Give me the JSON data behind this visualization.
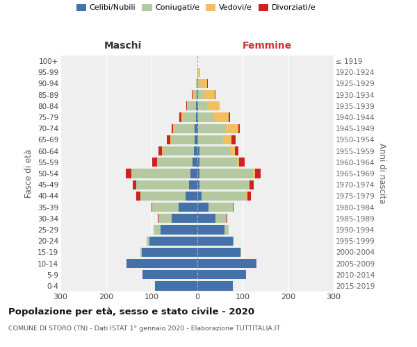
{
  "age_groups": [
    "0-4",
    "5-9",
    "10-14",
    "15-19",
    "20-24",
    "25-29",
    "30-34",
    "35-39",
    "40-44",
    "45-49",
    "50-54",
    "55-59",
    "60-64",
    "65-69",
    "70-74",
    "75-79",
    "80-84",
    "85-89",
    "90-94",
    "95-99",
    "100+"
  ],
  "birth_years": [
    "2015-2019",
    "2010-2014",
    "2005-2009",
    "2000-2004",
    "1995-1999",
    "1990-1994",
    "1985-1989",
    "1980-1984",
    "1975-1979",
    "1970-1974",
    "1965-1969",
    "1960-1964",
    "1955-1959",
    "1950-1954",
    "1945-1949",
    "1940-1944",
    "1935-1939",
    "1930-1934",
    "1925-1929",
    "1920-1924",
    "≤ 1919"
  ],
  "maschi": {
    "celibi": [
      93,
      120,
      155,
      122,
      105,
      80,
      55,
      40,
      25,
      18,
      15,
      10,
      7,
      5,
      5,
      2,
      2,
      1,
      0,
      0,
      0
    ],
    "coniugati": [
      0,
      0,
      0,
      2,
      5,
      15,
      30,
      58,
      100,
      115,
      130,
      78,
      68,
      52,
      45,
      30,
      18,
      8,
      2,
      0,
      0
    ],
    "vedovi": [
      0,
      0,
      0,
      0,
      0,
      0,
      0,
      0,
      0,
      0,
      0,
      0,
      2,
      2,
      3,
      2,
      2,
      1,
      0,
      0,
      0
    ],
    "divorziati": [
      0,
      0,
      0,
      0,
      0,
      0,
      2,
      2,
      8,
      8,
      12,
      10,
      8,
      8,
      2,
      5,
      2,
      2,
      0,
      0,
      0
    ]
  },
  "femmine": {
    "nubili": [
      78,
      108,
      130,
      95,
      78,
      60,
      40,
      25,
      10,
      5,
      5,
      5,
      5,
      3,
      3,
      2,
      2,
      2,
      2,
      0,
      0
    ],
    "coniugate": [
      0,
      0,
      0,
      2,
      3,
      10,
      25,
      53,
      98,
      108,
      118,
      83,
      68,
      55,
      60,
      35,
      20,
      12,
      5,
      2,
      0
    ],
    "vedove": [
      0,
      0,
      0,
      0,
      0,
      0,
      0,
      0,
      2,
      3,
      5,
      5,
      10,
      18,
      28,
      33,
      28,
      25,
      15,
      5,
      0
    ],
    "divorziate": [
      0,
      0,
      0,
      0,
      0,
      0,
      2,
      2,
      8,
      8,
      12,
      12,
      8,
      8,
      3,
      3,
      0,
      2,
      2,
      0,
      0
    ]
  },
  "colors": {
    "celibi": "#4472a8",
    "coniugati": "#b5c9a0",
    "vedovi": "#f0c060",
    "divorziati": "#cc2222"
  },
  "xlim": 300,
  "title": "Popolazione per età, sesso e stato civile - 2020",
  "subtitle": "COMUNE DI STORO (TN) - Dati ISTAT 1° gennaio 2020 - Elaborazione TUTTITALIA.IT",
  "ylabel_left": "Fasce di età",
  "ylabel_right": "Anni di nascita",
  "header_maschi": "Maschi",
  "header_femmine": "Femmine",
  "bg_color": "#efefef",
  "bar_height": 0.82,
  "legend_labels": [
    "Celibi/Nubili",
    "Coniugati/e",
    "Vedovi/e",
    "Divorziati/e"
  ]
}
